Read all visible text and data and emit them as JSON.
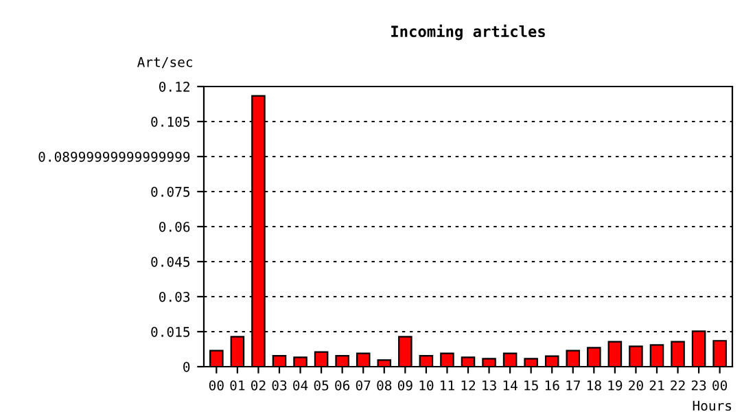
{
  "chart_data": {
    "type": "bar",
    "title": "Incoming articles",
    "ylabel": "Art/sec",
    "xlabel": "Hours",
    "categories": [
      "00",
      "01",
      "02",
      "03",
      "04",
      "05",
      "06",
      "07",
      "08",
      "09",
      "10",
      "11",
      "12",
      "13",
      "14",
      "15",
      "16",
      "17",
      "18",
      "19",
      "20",
      "21",
      "22",
      "23",
      "00"
    ],
    "values": [
      0.0069,
      0.0128,
      0.116,
      0.0047,
      0.004,
      0.0063,
      0.0047,
      0.0057,
      0.0028,
      0.0128,
      0.0047,
      0.0057,
      0.004,
      0.0034,
      0.0057,
      0.0034,
      0.0045,
      0.0069,
      0.0081,
      0.0107,
      0.0087,
      0.0093,
      0.0107,
      0.0152,
      0.0111
    ],
    "color": "#ff0000",
    "ylim": [
      0,
      0.12
    ],
    "yticks": [
      0,
      0.015,
      0.03,
      0.045,
      0.06,
      0.075,
      {
        "value": 0.09,
        "label": "0.08999999999999999"
      },
      0.105,
      0.12
    ],
    "grid": "y"
  }
}
